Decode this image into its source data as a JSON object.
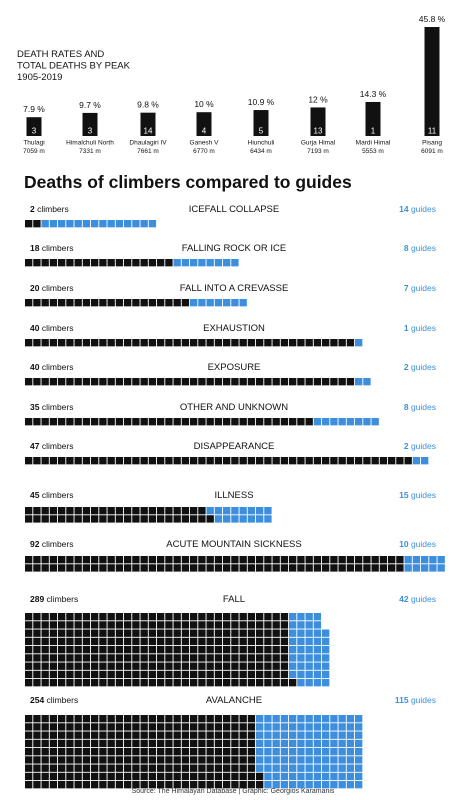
{
  "peak_chart": {
    "title_lines": [
      "DEATH RATES AND",
      "TOTAL DEATHS BY PEAK",
      "1905-2019"
    ],
    "rate_unit": "%",
    "peaks": [
      {
        "name": "Thulagi",
        "elevation": "7059 m",
        "rate": 7.9,
        "rate_label": "7.9 %",
        "deaths": 3
      },
      {
        "name": "Himalchuli North",
        "elevation": "7331 m",
        "rate": 9.7,
        "rate_label": "9.7 %",
        "deaths": 3
      },
      {
        "name": "Dhaulagiri IV",
        "elevation": "7661 m",
        "rate": 9.8,
        "rate_label": "9.8 %",
        "deaths": 14
      },
      {
        "name": "Ganesh V",
        "elevation": "6770 m",
        "rate": 10,
        "rate_label": "10 %",
        "deaths": 4
      },
      {
        "name": "Hiunchuli",
        "elevation": "6434 m",
        "rate": 10.9,
        "rate_label": "10.9 %",
        "deaths": 5
      },
      {
        "name": "Gurja Himal",
        "elevation": "7193 m",
        "rate": 12,
        "rate_label": "12 %",
        "deaths": 13
      },
      {
        "name": "Mardi Himal",
        "elevation": "5553 m",
        "rate": 14.3,
        "rate_label": "14.3 %",
        "deaths": 1
      },
      {
        "name": "Pisang",
        "elevation": "6091 m",
        "rate": 45.8,
        "rate_label": "45.8 %",
        "deaths": 11
      }
    ]
  },
  "causes_chart": {
    "title": "Deaths of climbers compared to guides",
    "climbers_word": "climbers",
    "guides_word": "guides",
    "climbers_color": "#111111",
    "guides_color": "#3d8fdd",
    "causes": [
      {
        "cause": "ICEFALL COLLAPSE",
        "climbers": 2,
        "guides": 14
      },
      {
        "cause": "FALLING ROCK OR ICE",
        "climbers": 18,
        "guides": 8
      },
      {
        "cause": "FALL INTO A CREVASSE",
        "climbers": 20,
        "guides": 7
      },
      {
        "cause": "EXHAUSTION",
        "climbers": 40,
        "guides": 1
      },
      {
        "cause": "EXPOSURE",
        "climbers": 40,
        "guides": 2
      },
      {
        "cause": "OTHER AND UNKNOWN",
        "climbers": 35,
        "guides": 8
      },
      {
        "cause": "DISAPPEARANCE",
        "climbers": 47,
        "guides": 2
      },
      {
        "cause": "ILLNESS",
        "climbers": 45,
        "guides": 15
      },
      {
        "cause": "ACUTE MOUNTAIN SICKNESS",
        "climbers": 92,
        "guides": 10
      },
      {
        "cause": "FALL",
        "climbers": 289,
        "guides": 42
      },
      {
        "cause": "AVALANCHE",
        "climbers": 254,
        "guides": 115
      }
    ]
  },
  "source": "Source: The Himalayan Database | Graphic: Georgios Karamanis",
  "chart_data": [
    {
      "type": "bar",
      "title": "DEATH RATES AND TOTAL DEATHS BY PEAK 1905-2019",
      "categories": [
        "Thulagi",
        "Himalchuli North",
        "Dhaulagiri IV",
        "Ganesh V",
        "Hiunchuli",
        "Gurja Himal",
        "Mardi Himal",
        "Pisang"
      ],
      "series": [
        {
          "name": "death rate (%)",
          "values": [
            7.9,
            9.7,
            9.8,
            10,
            10.9,
            12,
            14.3,
            45.8
          ]
        },
        {
          "name": "total deaths",
          "values": [
            3,
            3,
            14,
            4,
            5,
            13,
            1,
            11
          ]
        }
      ]
    },
    {
      "type": "bar",
      "title": "Deaths of climbers compared to guides",
      "categories": [
        "ICEFALL COLLAPSE",
        "FALLING ROCK OR ICE",
        "FALL INTO A CREVASSE",
        "EXHAUSTION",
        "EXPOSURE",
        "OTHER AND UNKNOWN",
        "DISAPPEARANCE",
        "ILLNESS",
        "ACUTE MOUNTAIN SICKNESS",
        "FALL",
        "AVALANCHE"
      ],
      "series": [
        {
          "name": "climbers",
          "values": [
            2,
            18,
            20,
            40,
            40,
            35,
            47,
            45,
            92,
            289,
            254
          ]
        },
        {
          "name": "guides",
          "values": [
            14,
            8,
            7,
            1,
            2,
            8,
            2,
            15,
            10,
            42,
            115
          ]
        }
      ]
    }
  ]
}
